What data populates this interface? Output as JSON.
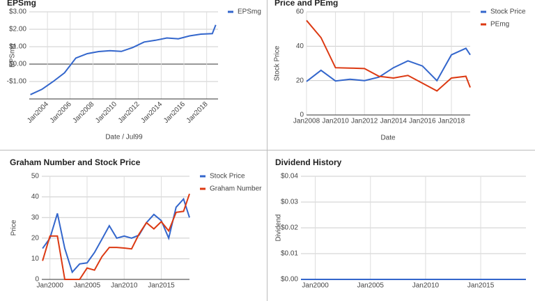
{
  "chart_data": [
    {
      "type": "line",
      "title": "EPSmg",
      "x_label": "Date / Jul99",
      "y_label": "EPSmg",
      "x": [
        2002.5,
        2003.5,
        2004.5,
        2005.5,
        2006.5,
        2007.5,
        2008.5,
        2009.5,
        2010.5,
        2011.5,
        2012.5,
        2013.5,
        2014.5,
        2015.5,
        2016.5,
        2017.5,
        2018.5,
        2018.8
      ],
      "series": [
        {
          "name": "EPSmg",
          "color": "#3366cc",
          "values": [
            -1.75,
            -1.45,
            -1.0,
            -0.5,
            0.35,
            0.6,
            0.72,
            0.77,
            0.73,
            0.95,
            1.27,
            1.37,
            1.5,
            1.45,
            1.62,
            1.72,
            1.75,
            2.25
          ]
        }
      ],
      "xlim": [
        2002.4,
        2019.0
      ],
      "xticks": [
        {
          "value": 2004,
          "label": "Jan2004"
        },
        {
          "value": 2006,
          "label": "Jan2006"
        },
        {
          "value": 2008,
          "label": "Jan2008"
        },
        {
          "value": 2010,
          "label": "Jan2010"
        },
        {
          "value": 2012,
          "label": "Jan2012"
        },
        {
          "value": 2014,
          "label": "Jan2014"
        },
        {
          "value": 2016,
          "label": "Jan2016"
        },
        {
          "value": 2018,
          "label": "Jan2018"
        }
      ],
      "ylim": [
        -2,
        3
      ],
      "yticks": [
        {
          "value": -1,
          "label": "-$1.00"
        },
        {
          "value": 0,
          "label": "$0.00"
        },
        {
          "value": 1,
          "label": "$1.00"
        },
        {
          "value": 2,
          "label": "$2.00"
        },
        {
          "value": 3,
          "label": "$3.00"
        }
      ],
      "grid": true,
      "legend": "right"
    },
    {
      "type": "line",
      "title": "Price and PEmg",
      "x_label": "Date",
      "y_label": "Stock Price",
      "x": [
        2008,
        2009,
        2010,
        2011,
        2012,
        2013,
        2014,
        2015,
        2016,
        2017,
        2018,
        2019,
        2019.3
      ],
      "series": [
        {
          "name": "Stock Price",
          "color": "#3366cc",
          "values": [
            19.5,
            26,
            19.8,
            20.8,
            20,
            22,
            27.5,
            31.5,
            28.5,
            20,
            35,
            38.8,
            35
          ]
        },
        {
          "name": "PEmg",
          "color": "#dc3912",
          "values": [
            55,
            45,
            27.5,
            27.3,
            27,
            22.5,
            21.5,
            23,
            18.5,
            14,
            21.5,
            22.5,
            16
          ]
        }
      ],
      "xlim": [
        2008,
        2019.3
      ],
      "xticks": [
        {
          "value": 2008,
          "label": "Jan2008"
        },
        {
          "value": 2010,
          "label": "Jan2010"
        },
        {
          "value": 2012,
          "label": "Jan2012"
        },
        {
          "value": 2014,
          "label": "Jan2014"
        },
        {
          "value": 2016,
          "label": "Jan2016"
        },
        {
          "value": 2018,
          "label": "Jan2018"
        }
      ],
      "ylim": [
        0,
        60
      ],
      "yticks": [
        0,
        20,
        40,
        60
      ],
      "grid": true,
      "legend": "right"
    },
    {
      "type": "line",
      "title": "Graham Number and Stock Price",
      "y_label": "Price",
      "x": [
        1999,
        2000,
        2001,
        2002,
        2003,
        2004,
        2005,
        2006,
        2007,
        2008,
        2009,
        2010,
        2011,
        2012,
        2013,
        2014,
        2015,
        2016,
        2017,
        2018,
        2018.8
      ],
      "series": [
        {
          "name": "Stock Price",
          "color": "#3366cc",
          "values": [
            15,
            20,
            32,
            15,
            3.5,
            7.5,
            8,
            13,
            19.5,
            26,
            20,
            21,
            20,
            21.5,
            27.5,
            31.5,
            28.5,
            20,
            35,
            39,
            30
          ]
        },
        {
          "name": "Graham Number",
          "color": "#dc3912",
          "values": [
            9,
            21,
            21,
            0,
            0,
            0,
            5.5,
            4.5,
            11,
            15.5,
            15.5,
            15.2,
            14.8,
            22,
            27.5,
            24.5,
            28,
            23.5,
            32.5,
            33,
            41.5
          ]
        }
      ],
      "xlim": [
        1998.9,
        2018.8
      ],
      "xticks": [
        {
          "value": 2000,
          "label": "Jan2000"
        },
        {
          "value": 2005,
          "label": "Jan2005"
        },
        {
          "value": 2010,
          "label": "Jan2010"
        },
        {
          "value": 2015,
          "label": "Jan2015"
        }
      ],
      "ylim": [
        0,
        50
      ],
      "yticks": [
        0,
        10,
        20,
        30,
        40,
        50
      ],
      "grid": true,
      "legend": "right"
    },
    {
      "type": "line",
      "title": "Dividend History",
      "y_label": "Dividend",
      "x": [
        1998.7,
        2019.1
      ],
      "series": [
        {
          "color": "#3366cc",
          "values": [
            0,
            0
          ]
        }
      ],
      "xlim": [
        1998.7,
        2019.1
      ],
      "xticks": [
        {
          "value": 2000,
          "label": "Jan2000"
        },
        {
          "value": 2005,
          "label": "Jan2005"
        },
        {
          "value": 2010,
          "label": "Jan2010"
        },
        {
          "value": 2015,
          "label": "Jan2015"
        }
      ],
      "ylim": [
        0,
        0.04
      ],
      "yticks": [
        {
          "value": 0,
          "label": "$0.00"
        },
        {
          "value": 0.01,
          "label": "$0.01"
        },
        {
          "value": 0.02,
          "label": "$0.02"
        },
        {
          "value": 0.03,
          "label": "$0.03"
        },
        {
          "value": 0.04,
          "label": "$0.04"
        }
      ],
      "grid": true
    }
  ]
}
